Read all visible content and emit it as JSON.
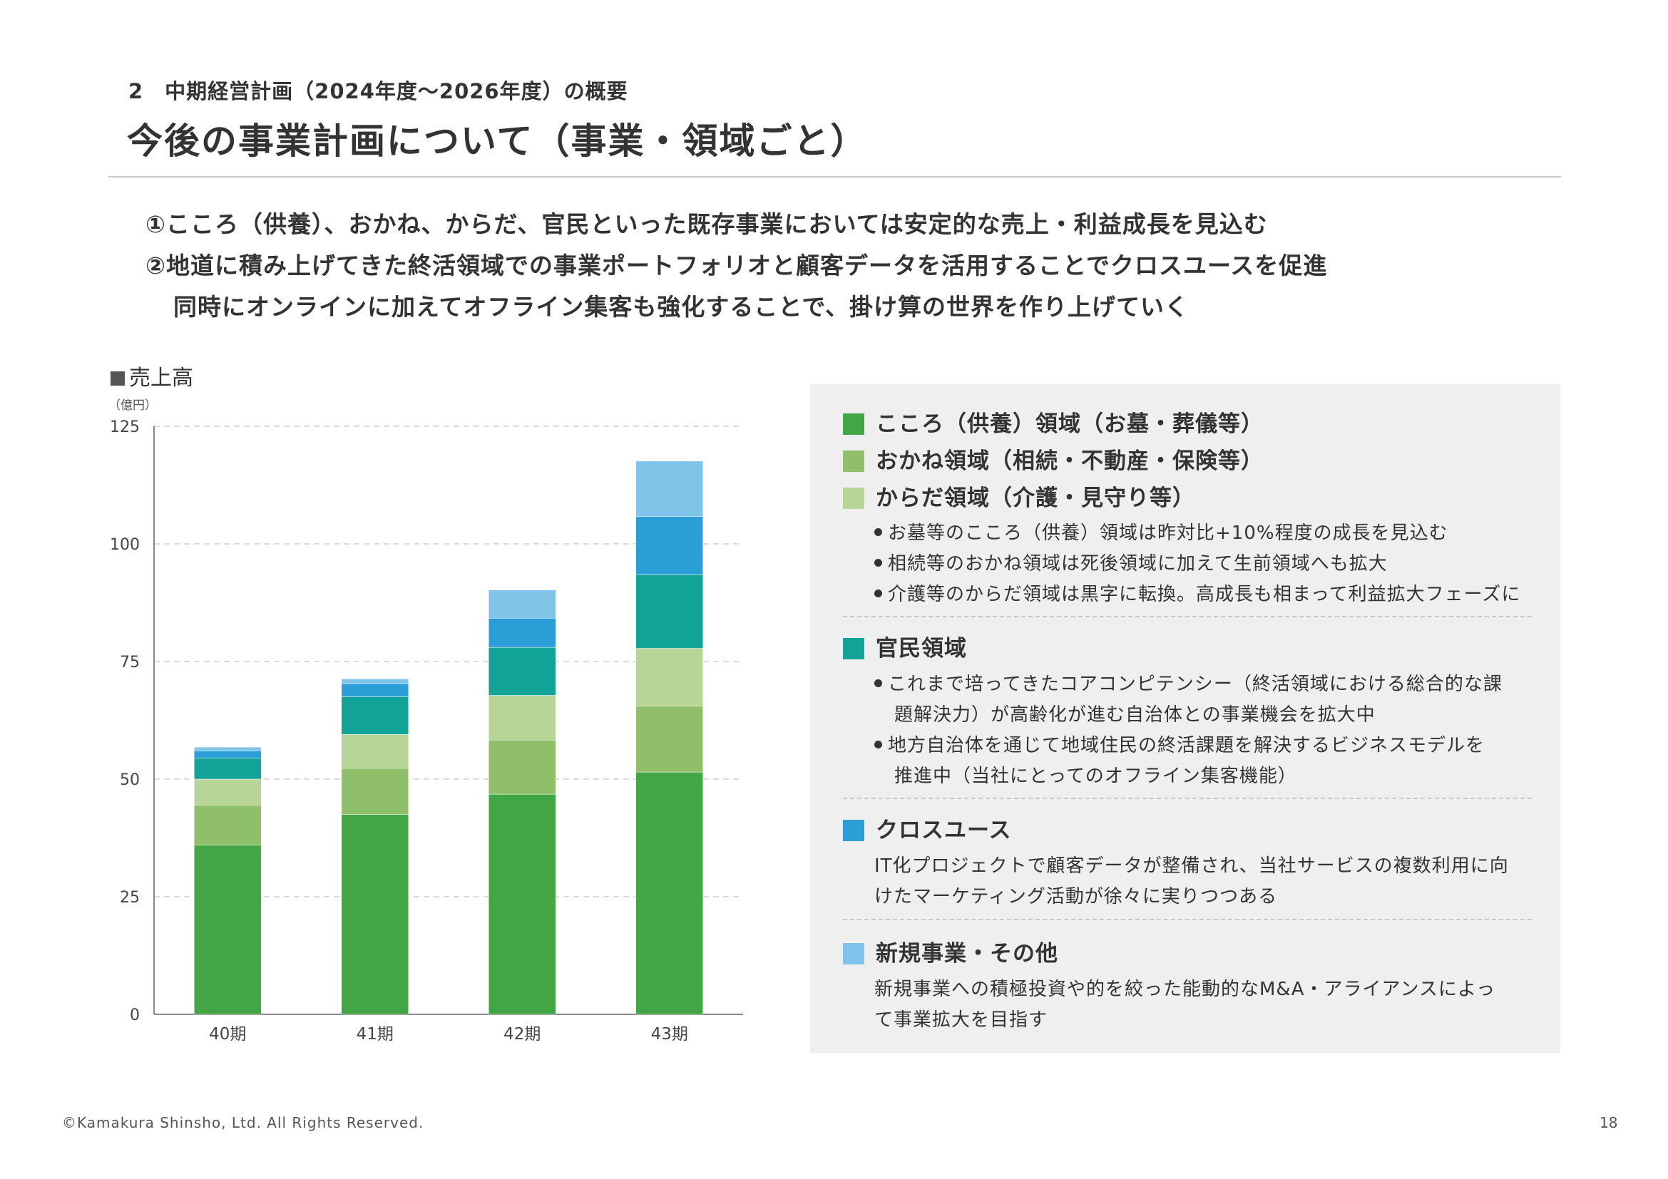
{
  "header": {
    "section_label": "2　中期経営計画（2024年度～2026年度）の概要",
    "title": "今後の事業計画について（事業・領域ごと）"
  },
  "summary": {
    "lines": [
      "①こころ（供養）、おかね、からだ、官民といった既存事業においては安定的な売上・利益成長を見込む",
      "②地道に積み上げてきた終活領域での事業ポートフォリオと顧客データを活用することでクロスユースを促進",
      "同時にオンラインに加えてオフライン集客も強化することで、掛け算の世界を作り上げていく"
    ]
  },
  "chart_heading": "売上高",
  "chart_data": {
    "type": "bar",
    "stacked": true,
    "unit_label": "（億円）",
    "categories": [
      "40期",
      "41期",
      "42期",
      "43期"
    ],
    "ylim": [
      0,
      125
    ],
    "yticks": [
      0,
      25,
      50,
      75,
      100,
      125
    ],
    "grid": true,
    "series": [
      {
        "name": "こころ（供養）領域（お墓・葬儀等）",
        "color": "#43a645",
        "values": [
          36,
          42.5,
          46.8,
          51.5
        ]
      },
      {
        "name": "おかね領域（相続・不動産・保険等）",
        "color": "#8fbf69",
        "values": [
          8.5,
          9.8,
          11.5,
          14
        ]
      },
      {
        "name": "からだ領域（介護・見守り等）",
        "color": "#b6d596",
        "values": [
          5.5,
          7.2,
          9.5,
          12.3
        ]
      },
      {
        "name": "官民領域",
        "color": "#12a398",
        "values": [
          4.5,
          8,
          10.2,
          15.7
        ]
      },
      {
        "name": "クロスユース",
        "color": "#2b9ed7",
        "values": [
          1.5,
          2.8,
          6.2,
          12.3
        ]
      },
      {
        "name": "新規事業・その他",
        "color": "#80c4e9",
        "values": [
          0.8,
          1,
          6,
          11.8
        ]
      }
    ]
  },
  "legend_panel": {
    "groups": [
      {
        "headers": [
          "こころ（供養）領域（お墓・葬儀等）",
          "おかね領域（相続・不動産・保険等）",
          "からだ領域（介護・見守り等）"
        ],
        "bullets": [
          "お墓等のこころ（供養）領域は昨対比+10%程度の成長を見込む",
          "相続等のおかね領域は死後領域に加えて生前領域へも拡大",
          "介護等のからだ領域は黒字に転換。高成長も相まって利益拡大フェーズに"
        ]
      },
      {
        "header": "官民領域",
        "bullet1": [
          "これまで培ってきたコアコンピテンシー（終活領域における総合的な課",
          "題解決力）が高齢化が進む自治体との事業機会を拡大中"
        ],
        "bullet2": [
          "地方自治体を通じて地域住民の終活課題を解決するビジネスモデルを",
          "推進中（当社にとってのオフライン集客機能）"
        ]
      },
      {
        "header": "クロスユース",
        "text": [
          "IT化プロジェクトで顧客データが整備され、当社サービスの複数利用に向",
          "けたマーケティング活動が徐々に実りつつある"
        ]
      },
      {
        "header": "新規事業・その他",
        "text": [
          "新規事業への積極投資や的を絞った能動的なM&A・アライアンスによっ",
          "て事業拡大を目指す"
        ]
      }
    ]
  },
  "footer": {
    "copyright": "©Kamakura Shinsho, Ltd. All Rights Reserved.",
    "page_number": "18"
  }
}
